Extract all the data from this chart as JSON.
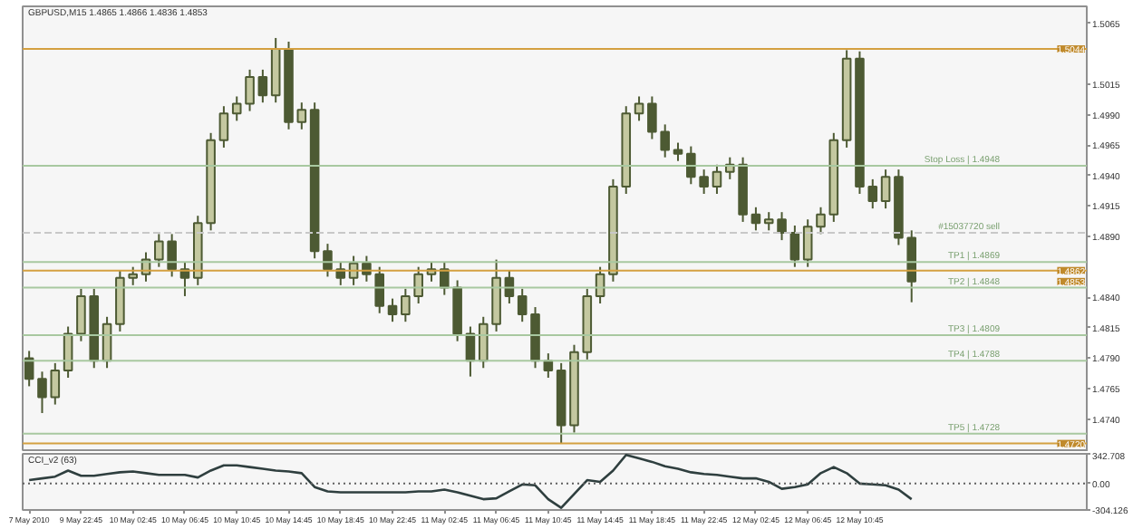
{
  "chart_data": [
    {
      "type": "candlestick",
      "title": "GBPUSD,M15  1.4865 1.4866 1.4836 1.4853",
      "color": "#4d5a33",
      "tick_labels": "y",
      "grid": false,
      "categories": [
        null,
        null,
        null,
        null,
        null,
        null,
        null,
        null,
        null,
        null,
        null,
        null,
        null,
        null,
        null,
        null,
        null,
        null,
        null,
        null,
        null,
        null,
        null,
        null,
        null,
        null,
        null,
        null,
        null,
        null,
        null,
        null,
        null,
        null,
        null,
        null,
        null,
        null,
        null,
        null,
        null,
        null,
        null,
        null,
        null,
        null,
        null,
        null,
        null,
        null,
        null,
        null,
        null,
        null,
        null,
        null,
        null,
        null,
        null,
        null,
        null,
        null,
        null,
        null,
        null,
        null,
        null,
        null,
        null,
        null,
        null,
        null,
        null,
        null,
        null,
        null,
        null,
        null,
        null,
        null,
        null,
        null
      ],
      "ohlc": [
        [
          1.479,
          1.4796,
          1.4767,
          1.4773
        ],
        [
          1.4773,
          1.4779,
          1.4745,
          1.4758
        ],
        [
          1.4758,
          1.4786,
          1.4752,
          1.478
        ],
        [
          1.478,
          1.4816,
          1.4774,
          1.481
        ],
        [
          1.481,
          1.4847,
          1.4804,
          1.4841
        ],
        [
          1.4841,
          1.4847,
          1.4782,
          1.4788
        ],
        [
          1.4788,
          1.4824,
          1.4782,
          1.4818
        ],
        [
          1.4818,
          1.4862,
          1.4812,
          1.4856
        ],
        [
          1.4856,
          1.4865,
          1.485,
          1.4859
        ],
        [
          1.4859,
          1.4877,
          1.4853,
          1.4871
        ],
        [
          1.4871,
          1.4892,
          1.4865,
          1.4886
        ],
        [
          1.4886,
          1.4892,
          1.4857,
          1.4863
        ],
        [
          1.4863,
          1.4869,
          1.4841,
          1.4856
        ],
        [
          1.4856,
          1.4907,
          1.485,
          1.4901
        ],
        [
          1.4901,
          1.4975,
          1.4895,
          1.4969
        ],
        [
          1.4969,
          1.4997,
          1.4963,
          1.4991
        ],
        [
          1.4991,
          1.5005,
          1.4985,
          1.4999
        ],
        [
          1.4999,
          1.5027,
          1.4993,
          1.5021
        ],
        [
          1.5021,
          1.5027,
          1.5,
          1.5006
        ],
        [
          1.5006,
          1.5053,
          1.5,
          1.5044
        ],
        [
          1.5044,
          1.505,
          1.4978,
          1.4984
        ],
        [
          1.4984,
          1.5,
          1.4978,
          1.4994
        ],
        [
          1.4994,
          1.5,
          1.4872,
          1.4878
        ],
        [
          1.4878,
          1.4884,
          1.4857,
          1.4863
        ],
        [
          1.4863,
          1.4869,
          1.485,
          1.4856
        ],
        [
          1.4856,
          1.4874,
          1.485,
          1.4868
        ],
        [
          1.4868,
          1.4874,
          1.4853,
          1.4859
        ],
        [
          1.4859,
          1.4865,
          1.4827,
          1.4833
        ],
        [
          1.4833,
          1.4839,
          1.482,
          1.4826
        ],
        [
          1.4826,
          1.4847,
          1.482,
          1.4841
        ],
        [
          1.4841,
          1.4865,
          1.4835,
          1.4859
        ],
        [
          1.4859,
          1.4869,
          1.4853,
          1.4863
        ],
        [
          1.4863,
          1.4869,
          1.4842,
          1.4848
        ],
        [
          1.4848,
          1.4854,
          1.4804,
          1.481
        ],
        [
          1.481,
          1.4816,
          1.4775,
          1.4788
        ],
        [
          1.4788,
          1.4824,
          1.4782,
          1.4818
        ],
        [
          1.4818,
          1.4871,
          1.4812,
          1.4856
        ],
        [
          1.4856,
          1.4862,
          1.4835,
          1.4841
        ],
        [
          1.4841,
          1.4847,
          1.482,
          1.4826
        ],
        [
          1.4826,
          1.4832,
          1.4782,
          1.4788
        ],
        [
          1.4788,
          1.4794,
          1.4774,
          1.478
        ],
        [
          1.478,
          1.4786,
          1.472,
          1.4735
        ],
        [
          1.4735,
          1.4801,
          1.4729,
          1.4795
        ],
        [
          1.4795,
          1.4847,
          1.4789,
          1.4841
        ],
        [
          1.4841,
          1.4865,
          1.4835,
          1.4859
        ],
        [
          1.4859,
          1.4937,
          1.4853,
          1.4931
        ],
        [
          1.4931,
          1.4997,
          1.4925,
          1.4991
        ],
        [
          1.4991,
          1.5005,
          1.4985,
          1.4999
        ],
        [
          1.4999,
          1.5005,
          1.497,
          1.4976
        ],
        [
          1.4976,
          1.4982,
          1.4955,
          1.4961
        ],
        [
          1.4961,
          1.4967,
          1.4952,
          1.4958
        ],
        [
          1.4958,
          1.4964,
          1.4933,
          1.4939
        ],
        [
          1.4939,
          1.4945,
          1.4925,
          1.4931
        ],
        [
          1.4931,
          1.4949,
          1.4925,
          1.4943
        ],
        [
          1.4943,
          1.4955,
          1.4937,
          1.4949
        ],
        [
          1.4949,
          1.4955,
          1.4902,
          1.4908
        ],
        [
          1.4908,
          1.4914,
          1.4895,
          1.4901
        ],
        [
          1.4901,
          1.491,
          1.4895,
          1.4904
        ],
        [
          1.4904,
          1.491,
          1.4887,
          1.4893
        ],
        [
          1.4893,
          1.4899,
          1.4865,
          1.4871
        ],
        [
          1.4871,
          1.4904,
          1.4865,
          1.4898
        ],
        [
          1.4898,
          1.4914,
          1.4892,
          1.4908
        ],
        [
          1.4908,
          1.4975,
          1.4902,
          1.4969
        ],
        [
          1.4969,
          1.5043,
          1.4963,
          1.5036
        ],
        [
          1.5036,
          1.5042,
          1.4925,
          1.4931
        ],
        [
          1.4931,
          1.4937,
          1.4913,
          1.4919
        ],
        [
          1.4919,
          1.4945,
          1.4913,
          1.4939
        ],
        [
          1.4939,
          1.4945,
          1.4883,
          1.4889
        ],
        [
          1.4889,
          1.4895,
          1.4836,
          1.4853
        ],
        null,
        null,
        null,
        null,
        null,
        null,
        null,
        null,
        null,
        null,
        null,
        null,
        null
      ],
      "ylim": [
        1.4713,
        1.5079
      ],
      "yticks": [
        {
          "value": 1.5065,
          "label": "1.5065"
        },
        {
          "value": 1.5015,
          "label": "1.5015"
        },
        {
          "value": 1.499,
          "label": "1.4990"
        },
        {
          "value": 1.4965,
          "label": "1.4965"
        },
        {
          "value": 1.494,
          "label": "1.4940"
        },
        {
          "value": 1.4915,
          "label": "1.4915"
        },
        {
          "value": 1.489,
          "label": "1.4890"
        },
        {
          "value": 1.484,
          "label": "1.4840"
        },
        {
          "value": 1.4815,
          "label": "1.4815"
        },
        {
          "value": 1.479,
          "label": "1.4790"
        },
        {
          "value": 1.4765,
          "label": "1.4765"
        },
        {
          "value": 1.474,
          "label": "1.4740"
        }
      ],
      "ref_lines": [
        {
          "axis": "y",
          "value": 1.5044,
          "color": "#d4a040"
        },
        {
          "axis": "y",
          "value": 1.4862,
          "color": "#d4a040"
        },
        {
          "axis": "y",
          "value": 1.472,
          "color": "#d4a040"
        },
        {
          "axis": "y",
          "value": 1.4893,
          "label": "#15037720 sell",
          "color": "#c8c8c8",
          "line_style": "dashed"
        },
        {
          "axis": "y",
          "value": 1.4948,
          "label": "Stop Loss | 1.4948",
          "color": "#a8c8a0"
        },
        {
          "axis": "y",
          "value": 1.4869,
          "label": "TP1 | 1.4869",
          "color": "#a8c8a0"
        },
        {
          "axis": "y",
          "value": 1.4848,
          "label": "TP2 | 1.4848",
          "color": "#a8c8a0"
        },
        {
          "axis": "y",
          "value": 1.4809,
          "label": "TP3 | 1.4809",
          "color": "#a8c8a0"
        },
        {
          "axis": "y",
          "value": 1.4788,
          "label": "TP4 | 1.4788",
          "color": "#a8c8a0"
        },
        {
          "axis": "y",
          "value": 1.4728,
          "label": "TP5 | 1.4728",
          "color": "#a8c8a0"
        }
      ],
      "annotations": [
        {
          "text": "1.5044",
          "y": 1.5044
        },
        {
          "text": "1.4862",
          "y": 1.4862
        },
        {
          "text": "1.4853",
          "y": 1.4853
        },
        {
          "text": "1.4720",
          "y": 1.472
        }
      ]
    },
    {
      "type": "line",
      "title": "CCI_v2 (63)",
      "grid": false,
      "categories": [
        "7 May 2010",
        null,
        null,
        null,
        "9 May 22:45",
        null,
        null,
        null,
        "10 May 02:45",
        null,
        null,
        null,
        "10 May 06:45",
        null,
        null,
        null,
        "10 May 10:45",
        null,
        null,
        null,
        "10 May 14:45",
        null,
        null,
        null,
        "10 May 18:45",
        null,
        null,
        null,
        "10 May 22:45",
        null,
        null,
        null,
        "11 May 02:45",
        null,
        null,
        null,
        "11 May 06:45",
        null,
        null,
        null,
        "11 May 10:45",
        null,
        null,
        null,
        "11 May 14:45",
        null,
        null,
        null,
        "11 May 18:45",
        null,
        null,
        null,
        "11 May 22:45",
        null,
        null,
        null,
        "12 May 02:45",
        null,
        null,
        null,
        "12 May 06:45",
        null,
        null,
        null,
        "12 May 10:45",
        null,
        null,
        null,
        null,
        null,
        null,
        null,
        null,
        null,
        null,
        null,
        null,
        null,
        null,
        null,
        null,
        null
      ],
      "series": [
        {
          "color": "#2f3f3f",
          "values": [
            40,
            60,
            80,
            150,
            90,
            90,
            110,
            130,
            140,
            120,
            100,
            100,
            100,
            70,
            150,
            210,
            210,
            190,
            170,
            150,
            140,
            120,
            -40,
            -90,
            -100,
            -100,
            -100,
            -100,
            -100,
            -100,
            -90,
            -90,
            -70,
            -100,
            -140,
            -180,
            -170,
            -90,
            -10,
            -20,
            -180,
            -280,
            -120,
            40,
            20,
            150,
            330,
            290,
            250,
            200,
            170,
            130,
            110,
            100,
            80,
            60,
            60,
            20,
            -60,
            -40,
            -10,
            120,
            190,
            120,
            0,
            -10,
            -20,
            -70,
            -180,
            null,
            null,
            null,
            null,
            null,
            null,
            null,
            null,
            null,
            null,
            null,
            null,
            null
          ]
        }
      ],
      "ylim": [
        -304.126,
        342.708
      ],
      "yticks": [
        {
          "value": 342.708,
          "label": "342.708"
        },
        {
          "value": 0,
          "label": "0.00"
        },
        {
          "value": -304.126,
          "label": "-304.126"
        }
      ],
      "ref_lines": [
        {
          "axis": "y",
          "value": 0,
          "color": "#606060",
          "line_style": "dotted"
        }
      ]
    }
  ]
}
